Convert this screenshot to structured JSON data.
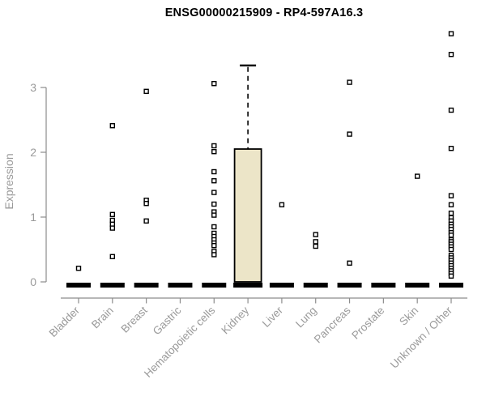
{
  "chart_data": {
    "type": "boxplot",
    "title": "ENSG00000215909 - RP4-597A16.3",
    "ylabel": "Expression",
    "xlabel": "",
    "yticks": [
      0,
      1,
      2,
      3
    ],
    "ylim": [
      0,
      3.9
    ],
    "grid": false,
    "legend": "none",
    "marker": "open-square",
    "categories": [
      "Bladder",
      "Brain",
      "Breast",
      "Gastric",
      "Hematopoietic cells",
      "Kidney",
      "Liver",
      "Lung",
      "Pancreas",
      "Prostate",
      "Skin",
      "Unknown / Other"
    ],
    "boxes": [
      {
        "category": "Bladder",
        "median": 0,
        "q1": 0,
        "q3": 0,
        "whisker_high": 0,
        "outliers": [
          0.21
        ]
      },
      {
        "category": "Brain",
        "median": 0,
        "q1": 0,
        "q3": 0,
        "whisker_high": 0,
        "outliers": [
          2.41,
          1.04,
          0.95,
          0.89,
          0.83,
          0.39
        ]
      },
      {
        "category": "Breast",
        "median": 0,
        "q1": 0,
        "q3": 0,
        "whisker_high": 0,
        "outliers": [
          2.94,
          1.26,
          1.21,
          0.94
        ]
      },
      {
        "category": "Gastric",
        "median": 0,
        "q1": 0,
        "q3": 0,
        "whisker_high": 0,
        "outliers": []
      },
      {
        "category": "Hematopoietic cells",
        "median": 0,
        "q1": 0,
        "q3": 0,
        "whisker_high": 0,
        "outliers": [
          3.06,
          2.1,
          2.01,
          1.7,
          1.56,
          1.38,
          1.2,
          1.08,
          1.03,
          0.85,
          0.75,
          0.7,
          0.65,
          0.6,
          0.56,
          0.47,
          0.42
        ]
      },
      {
        "category": "Kidney",
        "median": 0,
        "q1": 0,
        "q3": 2.05,
        "whisker_high": 3.34,
        "outliers": []
      },
      {
        "category": "Liver",
        "median": 0,
        "q1": 0,
        "q3": 0,
        "whisker_high": 0,
        "outliers": [
          1.19
        ]
      },
      {
        "category": "Lung",
        "median": 0,
        "q1": 0,
        "q3": 0,
        "whisker_high": 0,
        "outliers": [
          0.73,
          0.62,
          0.55
        ]
      },
      {
        "category": "Pancreas",
        "median": 0,
        "q1": 0,
        "q3": 0,
        "whisker_high": 0,
        "outliers": [
          3.08,
          2.28,
          0.29
        ]
      },
      {
        "category": "Prostate",
        "median": 0,
        "q1": 0,
        "q3": 0,
        "whisker_high": 0,
        "outliers": []
      },
      {
        "category": "Skin",
        "median": 0,
        "q1": 0,
        "q3": 0,
        "whisker_high": 0,
        "outliers": [
          1.63
        ]
      },
      {
        "category": "Unknown / Other",
        "median": 0,
        "q1": 0,
        "q3": 0,
        "whisker_high": 0,
        "outliers": [
          3.83,
          3.51,
          2.65,
          2.06,
          1.33,
          1.19,
          1.06,
          0.99,
          0.94,
          0.89,
          0.85,
          0.81,
          0.76,
          0.72,
          0.65,
          0.62,
          0.58,
          0.54,
          0.5,
          0.41,
          0.37,
          0.33,
          0.29,
          0.25,
          0.21,
          0.17,
          0.13,
          0.09
        ]
      }
    ],
    "colors": {
      "box_fill": "#ece5c8",
      "box_stroke": "#000000",
      "median": "#000000",
      "marker": "#000000",
      "marker_fill": "#ffffff",
      "axis": "#8c8c8c",
      "tick_label": "#9a9a9a",
      "title": "#000000",
      "background": "#ffffff"
    }
  }
}
